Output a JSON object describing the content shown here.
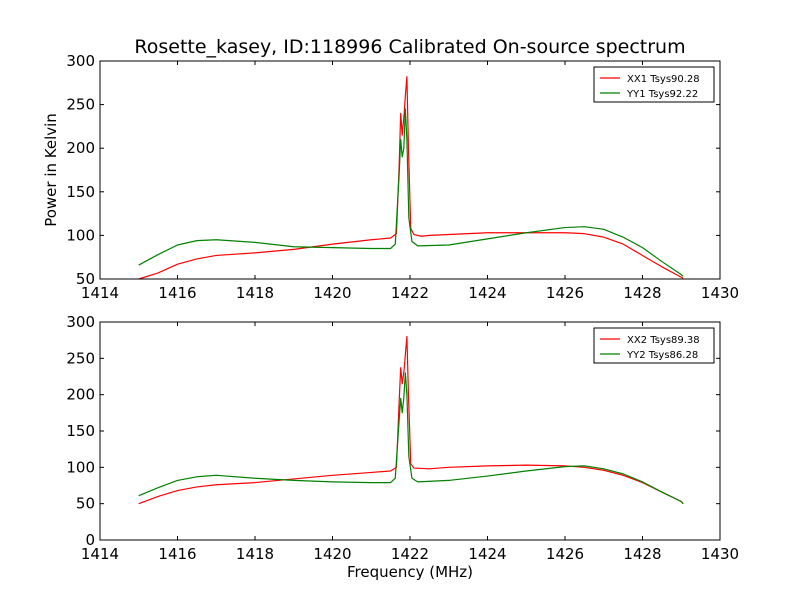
{
  "title": "Rosette_kasey, ID:118996 Calibrated On-source spectrum",
  "chart_data": [
    {
      "type": "line",
      "ylabel": "Power in Kelvin",
      "xlabel": "",
      "xlim": [
        1414,
        1430
      ],
      "ylim": [
        50,
        300
      ],
      "xticks": [
        "1414",
        "1416",
        "1418",
        "1420",
        "1422",
        "1424",
        "1426",
        "1428",
        "1430"
      ],
      "yticks": [
        "50",
        "100",
        "150",
        "200",
        "250",
        "300"
      ],
      "legend_position": "top-right",
      "grid": false,
      "series": [
        {
          "name": "XX1 Tsys90.28",
          "color": "#ff0000",
          "points": [
            [
              1415,
              50
            ],
            [
              1415.5,
              57
            ],
            [
              1416,
              67
            ],
            [
              1416.5,
              73
            ],
            [
              1417,
              77
            ],
            [
              1418,
              80
            ],
            [
              1419,
              84
            ],
            [
              1420,
              90
            ],
            [
              1421,
              95
            ],
            [
              1421.5,
              97
            ],
            [
              1421.65,
              102
            ],
            [
              1421.72,
              180
            ],
            [
              1421.76,
              240
            ],
            [
              1421.8,
              215
            ],
            [
              1421.85,
              240
            ],
            [
              1421.88,
              260
            ],
            [
              1421.92,
              282
            ],
            [
              1421.96,
              200
            ],
            [
              1422.02,
              108
            ],
            [
              1422.1,
              101
            ],
            [
              1422.3,
              99
            ],
            [
              1422.5,
              100
            ],
            [
              1423,
              101
            ],
            [
              1424,
              103
            ],
            [
              1425,
              103
            ],
            [
              1426,
              103
            ],
            [
              1426.5,
              102
            ],
            [
              1427,
              98
            ],
            [
              1427.5,
              90
            ],
            [
              1428,
              77
            ],
            [
              1428.5,
              64
            ],
            [
              1429,
              52
            ],
            [
              1429.05,
              51
            ]
          ]
        },
        {
          "name": "YY1 Tsys92.22",
          "color": "#008000",
          "points": [
            [
              1415,
              66
            ],
            [
              1415.5,
              78
            ],
            [
              1416,
              89
            ],
            [
              1416.5,
              94
            ],
            [
              1417,
              95
            ],
            [
              1418,
              92
            ],
            [
              1419,
              87
            ],
            [
              1420,
              86
            ],
            [
              1421,
              85
            ],
            [
              1421.5,
              85
            ],
            [
              1421.62,
              90
            ],
            [
              1421.72,
              170
            ],
            [
              1421.76,
              210
            ],
            [
              1421.8,
              190
            ],
            [
              1421.84,
              200
            ],
            [
              1421.88,
              245
            ],
            [
              1421.92,
              210
            ],
            [
              1421.97,
              120
            ],
            [
              1422.05,
              93
            ],
            [
              1422.2,
              88
            ],
            [
              1423,
              89
            ],
            [
              1424,
              96
            ],
            [
              1425,
              103
            ],
            [
              1426,
              109
            ],
            [
              1426.5,
              110
            ],
            [
              1427,
              107
            ],
            [
              1427.5,
              98
            ],
            [
              1428,
              86
            ],
            [
              1428.5,
              70
            ],
            [
              1429,
              55
            ],
            [
              1429.05,
              53
            ]
          ]
        }
      ]
    },
    {
      "type": "line",
      "ylabel": "",
      "xlabel": "Frequency (MHz)",
      "xlim": [
        1414,
        1430
      ],
      "ylim": [
        0,
        300
      ],
      "xticks": [
        "1414",
        "1416",
        "1418",
        "1420",
        "1422",
        "1424",
        "1426",
        "1428",
        "1430"
      ],
      "yticks": [
        "0",
        "50",
        "100",
        "150",
        "200",
        "250",
        "300"
      ],
      "legend_position": "top-right",
      "grid": false,
      "series": [
        {
          "name": "XX2 Tsys89.38",
          "color": "#ff0000",
          "points": [
            [
              1415,
              50
            ],
            [
              1415.5,
              60
            ],
            [
              1416,
              68
            ],
            [
              1416.5,
              73
            ],
            [
              1417,
              76
            ],
            [
              1418,
              79
            ],
            [
              1419,
              84
            ],
            [
              1420,
              89
            ],
            [
              1421,
              93
            ],
            [
              1421.5,
              95
            ],
            [
              1421.65,
              100
            ],
            [
              1421.72,
              190
            ],
            [
              1421.76,
              237
            ],
            [
              1421.8,
              215
            ],
            [
              1421.85,
              235
            ],
            [
              1421.88,
              255
            ],
            [
              1421.92,
              280
            ],
            [
              1421.96,
              200
            ],
            [
              1422.02,
              105
            ],
            [
              1422.1,
              99
            ],
            [
              1422.5,
              98
            ],
            [
              1423,
              100
            ],
            [
              1424,
              102
            ],
            [
              1425,
              103
            ],
            [
              1426,
              102
            ],
            [
              1426.5,
              100
            ],
            [
              1427,
              96
            ],
            [
              1427.5,
              89
            ],
            [
              1428,
              79
            ],
            [
              1428.5,
              66
            ],
            [
              1429,
              53
            ],
            [
              1429.05,
              50
            ]
          ]
        },
        {
          "name": "YY2 Tsys86.28",
          "color": "#008000",
          "points": [
            [
              1415,
              61
            ],
            [
              1415.5,
              72
            ],
            [
              1416,
              82
            ],
            [
              1416.5,
              87
            ],
            [
              1417,
              89
            ],
            [
              1418,
              85
            ],
            [
              1419,
              82
            ],
            [
              1420,
              80
            ],
            [
              1421,
              79
            ],
            [
              1421.5,
              79
            ],
            [
              1421.62,
              85
            ],
            [
              1421.72,
              165
            ],
            [
              1421.76,
              195
            ],
            [
              1421.8,
              175
            ],
            [
              1421.84,
              195
            ],
            [
              1421.88,
              230
            ],
            [
              1421.92,
              200
            ],
            [
              1421.97,
              115
            ],
            [
              1422.05,
              85
            ],
            [
              1422.2,
              80
            ],
            [
              1423,
              82
            ],
            [
              1424,
              88
            ],
            [
              1425,
              95
            ],
            [
              1426,
              101
            ],
            [
              1426.5,
              102
            ],
            [
              1427,
              98
            ],
            [
              1427.5,
              91
            ],
            [
              1428,
              80
            ],
            [
              1428.5,
              66
            ],
            [
              1429,
              53
            ],
            [
              1429.05,
              50
            ]
          ]
        }
      ]
    }
  ]
}
